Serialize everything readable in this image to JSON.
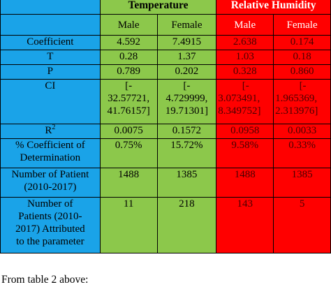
{
  "table": {
    "headers": {
      "temperature": "Temperature",
      "humidity": "Relative Humidity"
    },
    "subheaders": {
      "male": "Male",
      "female": "Female"
    },
    "rows": {
      "coefficient": {
        "label": "Coefficient",
        "values": [
          "4.592",
          "7.4915",
          "2.638",
          "0.174"
        ]
      },
      "t": {
        "label": "T",
        "values": [
          "0.28",
          "1.37",
          "1.03",
          "0.18"
        ]
      },
      "p": {
        "label": "P",
        "values": [
          "0.789",
          "0.202",
          "0.328",
          "0.860"
        ]
      },
      "ci": {
        "label": "CI",
        "values": [
          [
            "[-",
            "32.57721,",
            "41.76157]"
          ],
          [
            "[-",
            "4.729999,",
            "19.71301]"
          ],
          [
            "[-",
            "3.073491,",
            "8.349752]"
          ],
          [
            "[-",
            "1.965369,",
            "2.313976]"
          ]
        ]
      },
      "r2": {
        "label_base": "R",
        "label_sup": "2",
        "values": [
          "0.0075",
          "0.1572",
          "0.0958",
          "0.0033"
        ]
      },
      "pct": {
        "label_lines": [
          "% Coefficient of",
          "Determination"
        ],
        "values": [
          "0.75%",
          "15.72%",
          "9.58%",
          "0.33%"
        ]
      },
      "patients": {
        "label_lines": [
          "Number of Patient",
          "(2010-2017)"
        ],
        "values": [
          "1488",
          "1385",
          "1488",
          "1385"
        ]
      },
      "attributed": {
        "label_lines": [
          "Number of",
          "Patients (2010-",
          "2017) Attributed",
          "to the parameter"
        ],
        "values": [
          "11",
          "218",
          "143",
          "5"
        ]
      }
    }
  },
  "footer": "From table 2 above:",
  "colors": {
    "label_bg": "#1aa3e8",
    "temperature_bg": "#8cc84b",
    "humidity_bg": "#ff0000"
  }
}
